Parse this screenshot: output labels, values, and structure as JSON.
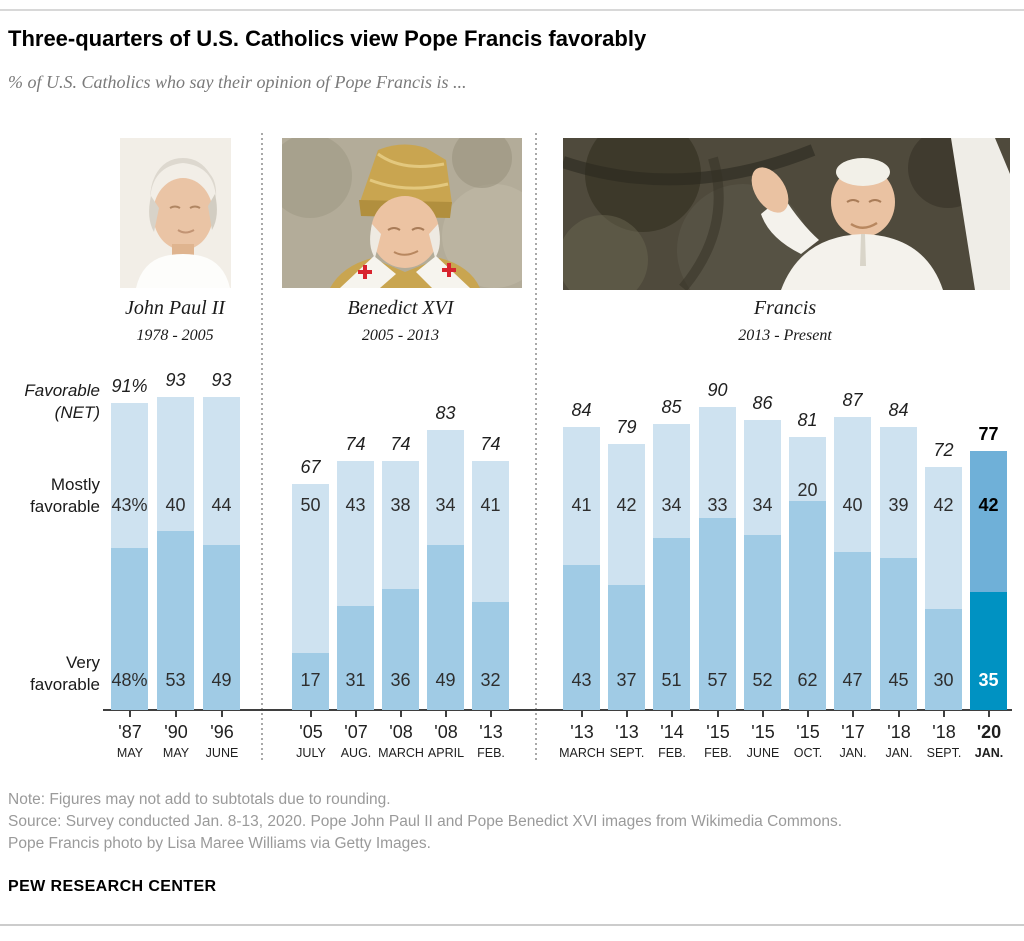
{
  "header": {
    "title": "Three-quarters of U.S. Catholics view Pope Francis favorably",
    "subtitle": "% of U.S. Catholics who say their opinion of Pope Francis is ..."
  },
  "popes": [
    {
      "name": "John Paul II",
      "years": "1978 - 2005",
      "photo_name": "john-paul-ii-photo"
    },
    {
      "name": "Benedict XVI",
      "years": "2005 - 2013",
      "photo_name": "benedict-xvi-photo"
    },
    {
      "name": "Francis",
      "years": "2013 - Present",
      "photo_name": "francis-photo"
    }
  ],
  "row_labels": {
    "net_line1": "Favorable",
    "net_line2": "(NET)",
    "mostly": "Mostly favorable",
    "very": "Very favorable"
  },
  "chart_data": {
    "type": "bar",
    "stacked": true,
    "ylim": [
      0,
      100
    ],
    "value_suffix": "%",
    "series_names": [
      "Very favorable",
      "Mostly favorable",
      "Favorable (NET)"
    ],
    "colors": {
      "mostly": "#cee2f0",
      "very": "#a0cbe5",
      "highlight_mostly": "#6fb0d8",
      "highlight_very": "#0092c2",
      "axis": "#3f3f3f"
    },
    "groups": [
      {
        "pope": "John Paul II",
        "bars": [
          {
            "year": "'87",
            "month": "MAY",
            "net": 91,
            "mostly": 43,
            "very": 48,
            "labels": {
              "net": "91%",
              "mostly": "43%",
              "very": "48%"
            },
            "highlight": false
          },
          {
            "year": "'90",
            "month": "MAY",
            "net": 93,
            "mostly": 40,
            "very": 53,
            "labels": {
              "net": "93",
              "mostly": "40",
              "very": "53"
            },
            "highlight": false
          },
          {
            "year": "'96",
            "month": "JUNE",
            "net": 93,
            "mostly": 44,
            "very": 49,
            "labels": {
              "net": "93",
              "mostly": "44",
              "very": "49"
            },
            "highlight": false
          }
        ]
      },
      {
        "pope": "Benedict XVI",
        "bars": [
          {
            "year": "'05",
            "month": "JULY",
            "net": 67,
            "mostly": 50,
            "very": 17,
            "labels": {
              "net": "67",
              "mostly": "50",
              "very": "17"
            },
            "highlight": false
          },
          {
            "year": "'07",
            "month": "AUG.",
            "net": 74,
            "mostly": 43,
            "very": 31,
            "labels": {
              "net": "74",
              "mostly": "43",
              "very": "31"
            },
            "highlight": false
          },
          {
            "year": "'08",
            "month": "MARCH",
            "net": 74,
            "mostly": 38,
            "very": 36,
            "labels": {
              "net": "74",
              "mostly": "38",
              "very": "36"
            },
            "highlight": false
          },
          {
            "year": "'08",
            "month": "APRIL",
            "net": 83,
            "mostly": 34,
            "very": 49,
            "labels": {
              "net": "83",
              "mostly": "34",
              "very": "49"
            },
            "highlight": false
          },
          {
            "year": "'13",
            "month": "FEB.",
            "net": 74,
            "mostly": 41,
            "very": 32,
            "labels": {
              "net": "74",
              "mostly": "41",
              "very": "32"
            },
            "highlight": false
          }
        ]
      },
      {
        "pope": "Francis",
        "bars": [
          {
            "year": "'13",
            "month": "MARCH",
            "net": 84,
            "mostly": 41,
            "very": 43,
            "labels": {
              "net": "84",
              "mostly": "41",
              "very": "43"
            },
            "highlight": false
          },
          {
            "year": "'13",
            "month": "SEPT.",
            "net": 79,
            "mostly": 42,
            "very": 37,
            "labels": {
              "net": "79",
              "mostly": "42",
              "very": "37"
            },
            "highlight": false
          },
          {
            "year": "'14",
            "month": "FEB.",
            "net": 85,
            "mostly": 34,
            "very": 51,
            "labels": {
              "net": "85",
              "mostly": "34",
              "very": "51"
            },
            "highlight": false
          },
          {
            "year": "'15",
            "month": "FEB.",
            "net": 90,
            "mostly": 33,
            "very": 57,
            "labels": {
              "net": "90",
              "mostly": "33",
              "very": "57"
            },
            "highlight": false
          },
          {
            "year": "'15",
            "month": "JUNE",
            "net": 86,
            "mostly": 34,
            "very": 52,
            "labels": {
              "net": "86",
              "mostly": "34",
              "very": "52"
            },
            "highlight": false
          },
          {
            "year": "'15",
            "month": "OCT.",
            "net": 81,
            "mostly": 20,
            "very": 62,
            "labels": {
              "net": "81",
              "mostly": "20",
              "very": "62"
            },
            "highlight": false
          },
          {
            "year": "'17",
            "month": "JAN.",
            "net": 87,
            "mostly": 40,
            "very": 47,
            "labels": {
              "net": "87",
              "mostly": "40",
              "very": "47"
            },
            "highlight": false
          },
          {
            "year": "'18",
            "month": "JAN.",
            "net": 84,
            "mostly": 39,
            "very": 45,
            "labels": {
              "net": "84",
              "mostly": "39",
              "very": "45"
            },
            "highlight": false
          },
          {
            "year": "'18",
            "month": "SEPT.",
            "net": 72,
            "mostly": 42,
            "very": 30,
            "labels": {
              "net": "72",
              "mostly": "42",
              "very": "30"
            },
            "highlight": false
          },
          {
            "year": "'20",
            "month": "JAN.",
            "net": 77,
            "mostly": 42,
            "very": 35,
            "labels": {
              "net": "77",
              "mostly": "42",
              "very": "35"
            },
            "highlight": true
          }
        ]
      }
    ]
  },
  "footer": {
    "note": "Note: Figures may not add to subtotals due to rounding.",
    "source1": "Source: Survey conducted Jan. 8-13, 2020. Pope John Paul II and Pope Benedict XVI images from Wikimedia Commons.",
    "source2": "Pope Francis photo by Lisa Maree Williams via Getty Images.",
    "brand": "PEW RESEARCH CENTER"
  }
}
